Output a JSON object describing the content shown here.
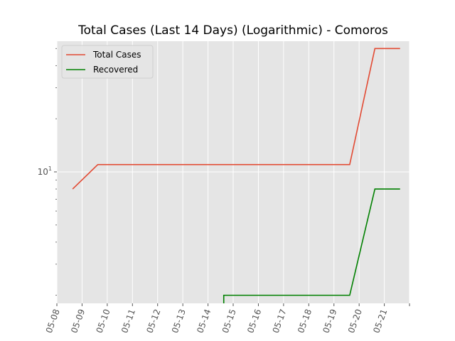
{
  "chart_data": {
    "type": "line",
    "title": "Total Cases (Last 14 Days) (Logarithmic) - Comoros",
    "xlabel": "",
    "ylabel": "",
    "x_tick_labels": [
      "05-08",
      "05-09",
      "05-10",
      "05-11",
      "05-12",
      "05-13",
      "05-14",
      "05-15",
      "05-16",
      "05-17",
      "05-18",
      "05-19",
      "05-20",
      "05-21"
    ],
    "y_scale": "log",
    "y_tick_label": "10^1",
    "y_tick_value": 10,
    "ylim": [
      1.8,
      55
    ],
    "grid": true,
    "legend_placement": "top-left",
    "series": [
      {
        "name": "Total Cases",
        "color": "#E24A33",
        "points": [
          {
            "x": "05-08 15:00",
            "y": 8
          },
          {
            "x": "05-09 15:00",
            "y": 11
          },
          {
            "x": "05-10 15:00",
            "y": 11
          },
          {
            "x": "05-11 15:00",
            "y": 11
          },
          {
            "x": "05-12 15:00",
            "y": 11
          },
          {
            "x": "05-13 15:00",
            "y": 11
          },
          {
            "x": "05-14 15:00",
            "y": 11
          },
          {
            "x": "05-15 15:00",
            "y": 11
          },
          {
            "x": "05-16 15:00",
            "y": 11
          },
          {
            "x": "05-17 15:00",
            "y": 11
          },
          {
            "x": "05-18 15:00",
            "y": 11
          },
          {
            "x": "05-19 15:00",
            "y": 11
          },
          {
            "x": "05-20 15:00",
            "y": 50
          },
          {
            "x": "05-21 15:00",
            "y": 50
          }
        ]
      },
      {
        "name": "Recovered",
        "color": "#008000",
        "points": [
          {
            "x": "05-14 15:00",
            "y": 0
          },
          {
            "x": "05-14 15:00",
            "y": 2
          },
          {
            "x": "05-15 15:00",
            "y": 2
          },
          {
            "x": "05-16 15:00",
            "y": 2
          },
          {
            "x": "05-17 15:00",
            "y": 2
          },
          {
            "x": "05-18 15:00",
            "y": 2
          },
          {
            "x": "05-19 15:00",
            "y": 2
          },
          {
            "x": "05-20 15:00",
            "y": 8
          },
          {
            "x": "05-21 15:00",
            "y": 8
          }
        ]
      }
    ]
  }
}
